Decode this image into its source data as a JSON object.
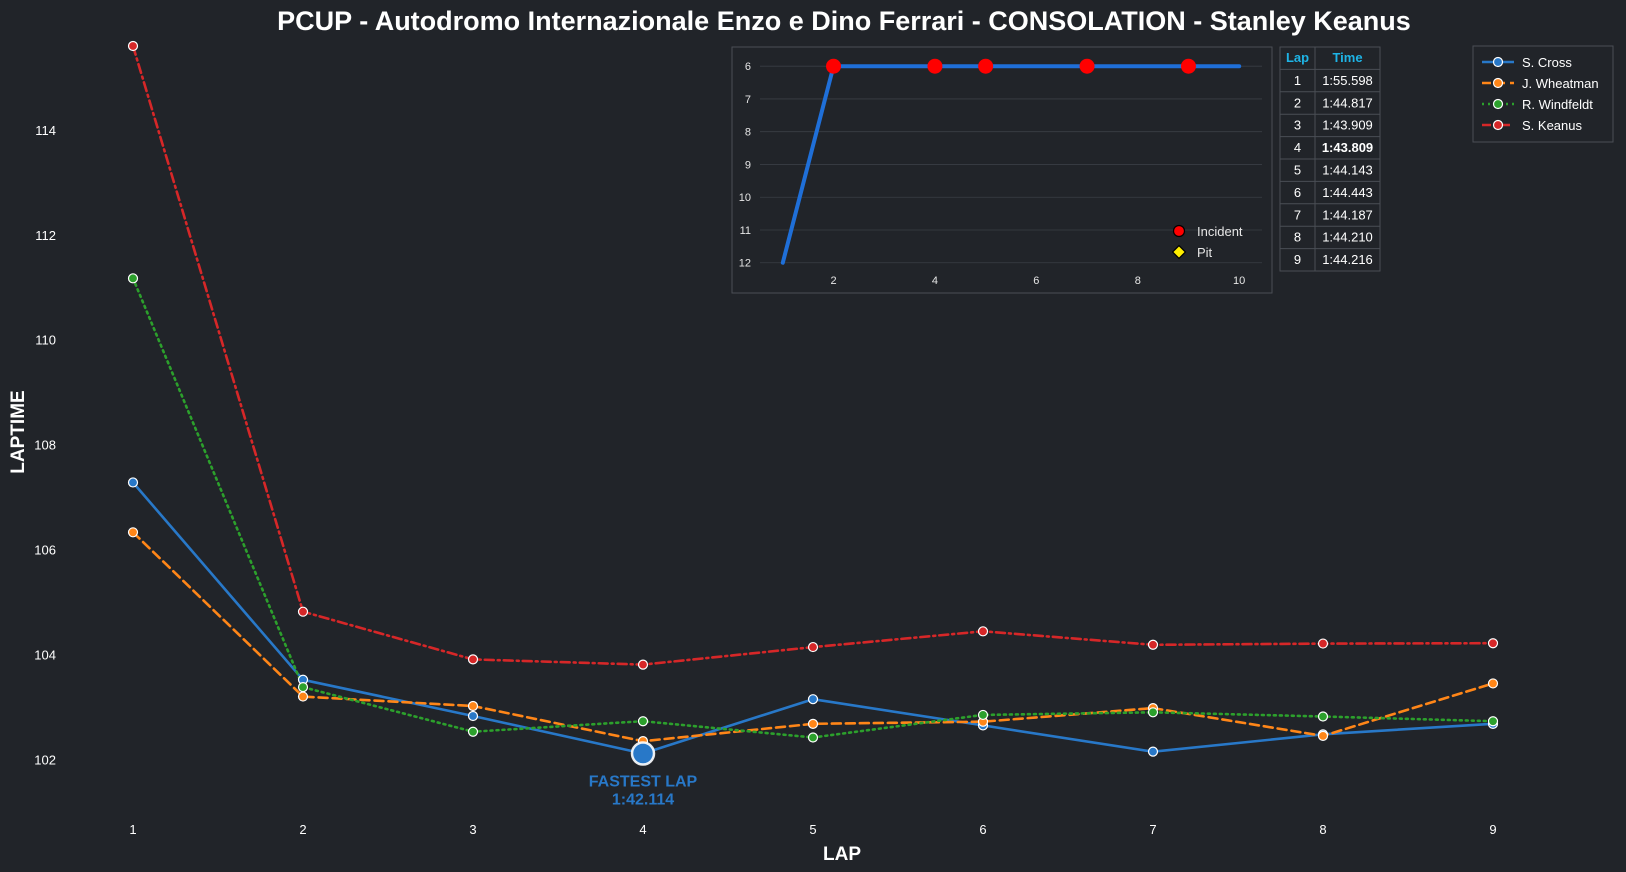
{
  "title": "PCUP - Autodromo Internazionale Enzo e Dino Ferrari - CONSOLATION - Stanley Keanus",
  "colors": {
    "background": "#212429",
    "s_cross": "#2878c8",
    "j_wheatman": "#ff8618",
    "r_windfeldt": "#2ca02c",
    "s_keanus": "#d62728",
    "inset_line": "#1f6fd8",
    "incident": "#ff0000",
    "pit": "#ffee00",
    "table_accent": "#1eb4e6",
    "table_highlight": "#ffff33"
  },
  "chart_data": [
    {
      "type": "line",
      "title": "PCUP - Autodromo Internazionale Enzo e Dino Ferrari - CONSOLATION - Stanley Keanus",
      "xlabel": "LAP",
      "ylabel": "LAPTIME",
      "x": [
        1,
        2,
        3,
        4,
        5,
        6,
        7,
        8,
        9
      ],
      "xlim": [
        0.5,
        9.5
      ],
      "ylim": [
        101.0,
        115.75
      ],
      "yticks": [
        102,
        104,
        106,
        108,
        110,
        112,
        114
      ],
      "grid": false,
      "legend_position": "top-right",
      "series": [
        {
          "name": "S. Cross",
          "style": "solid",
          "color": "#2878c8",
          "values": [
            107.28,
            103.52,
            102.83,
            102.114,
            103.15,
            102.65,
            102.15,
            102.48,
            102.68
          ]
        },
        {
          "name": "J. Wheatman",
          "style": "dashed",
          "color": "#ff8618",
          "values": [
            106.33,
            103.2,
            103.02,
            102.35,
            102.68,
            102.72,
            102.98,
            102.45,
            103.45
          ]
        },
        {
          "name": "R. Windfeldt",
          "style": "dotted",
          "color": "#2ca02c",
          "values": [
            111.17,
            103.38,
            102.53,
            102.73,
            102.42,
            102.85,
            102.9,
            102.82,
            102.73
          ]
        },
        {
          "name": "S. Keanus",
          "style": "dashdot",
          "color": "#d62728",
          "values": [
            115.598,
            104.817,
            103.909,
            103.809,
            104.143,
            104.443,
            104.187,
            104.21,
            104.216
          ]
        }
      ],
      "annotation": {
        "label": "FASTEST LAP",
        "time": "1:42.114",
        "x": 4,
        "y": 102.114
      }
    },
    {
      "type": "line",
      "x": [
        1,
        2,
        3,
        4,
        5,
        6,
        7,
        8,
        9,
        10
      ],
      "values": [
        12,
        6,
        6,
        6,
        6,
        6,
        6,
        6,
        6,
        6
      ],
      "xlim": [
        0.55,
        10.45
      ],
      "ylim": [
        12.1,
        5.75
      ],
      "y_inverted": true,
      "xticks": [
        2,
        4,
        6,
        8,
        10
      ],
      "yticks": [
        6,
        7,
        8,
        9,
        10,
        11,
        12
      ],
      "grid": true,
      "incidents": [
        2,
        4,
        5,
        7,
        9
      ],
      "pits": [],
      "legend_position": "bottom-right",
      "legend": {
        "incident": "Incident",
        "pit": "Pit"
      }
    }
  ],
  "lap_table": {
    "headers": [
      "Lap",
      "Time"
    ],
    "rows": [
      [
        "1",
        "1:55.598"
      ],
      [
        "2",
        "1:44.817"
      ],
      [
        "3",
        "1:43.909"
      ],
      [
        "4",
        "1:43.809"
      ],
      [
        "5",
        "1:44.143"
      ],
      [
        "6",
        "1:44.443"
      ],
      [
        "7",
        "1:44.187"
      ],
      [
        "8",
        "1:44.210"
      ],
      [
        "9",
        "1:44.216"
      ]
    ],
    "highlight_row": 3
  }
}
